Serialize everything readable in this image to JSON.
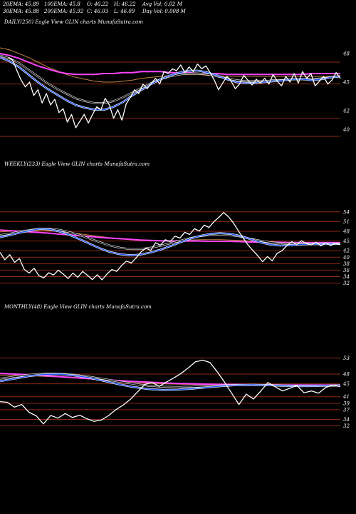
{
  "header": {
    "ema20": "20EMA: 45.89",
    "ema30": "30EMA: 45.88",
    "ema100": "100EMA: 45.8",
    "ema200": "200EMA: 45.92",
    "open": "O: 46.22",
    "close": "C: 46.03",
    "high": "H: 46.22",
    "low": "L: 46.09",
    "avg_vol": "Avg Vol: 0.02  M",
    "day_vol": "Day Vol: 0.008 M"
  },
  "colors": {
    "background": "#000000",
    "price": "#ffffff",
    "ema_short": "#2255ff",
    "ema_long": "#ff44ff",
    "ema_mid": "#c08040",
    "sr_line": "#8b2a12"
  },
  "chart_data": [
    {
      "type": "line",
      "title": "DAILY(250) Eagle  View  GLIN  charts MunafaSutra.com",
      "ylim": [
        39,
        49.5
      ],
      "yticks": [
        "48",
        "45",
        "42",
        "40"
      ],
      "sr_levels": [
        47.1,
        44.8,
        41.2,
        39.3
      ],
      "series": [
        {
          "role": "price",
          "values": [
            47.6,
            47.3,
            46.2,
            45.2,
            44.5,
            45.0,
            43.6,
            44.2,
            42.8,
            43.8,
            42.6,
            43.2,
            41.8,
            42.2,
            40.8,
            41.6,
            40.2,
            40.9,
            41.6,
            40.7,
            41.6,
            42.4,
            42.1,
            43.3,
            42.6,
            41.2,
            42.1,
            41.0,
            42.7,
            43.4,
            44.2,
            43.8,
            44.8,
            44.3,
            44.9,
            45.4,
            44.8,
            46.1,
            45.9,
            46.4,
            46.2,
            46.8,
            46.0,
            46.6,
            46.1,
            46.9,
            46.4,
            46.7,
            46.0,
            45.2,
            44.2,
            44.9,
            45.6,
            45.1,
            44.3,
            44.8,
            45.7,
            45.2,
            44.7,
            45.3,
            44.9,
            45.4,
            44.8,
            45.8,
            45.1,
            44.6,
            45.6,
            45.0,
            45.9,
            44.9,
            46.1,
            45.4,
            45.9,
            44.6,
            45.1,
            45.6,
            44.8,
            45.2,
            46.0,
            45.4
          ]
        },
        {
          "role": "ema20",
          "values": [
            47.6,
            47.2,
            46.6,
            45.8,
            45.0,
            44.3,
            43.7,
            43.1,
            42.6,
            42.3,
            42.1,
            42.1,
            42.4,
            42.9,
            43.6,
            44.2,
            44.8,
            45.3,
            45.7,
            46.0,
            46.2,
            46.2,
            46.0,
            45.7,
            45.3,
            45.0,
            44.9,
            44.9,
            45.0,
            45.1,
            45.2,
            45.3,
            45.3,
            45.2,
            45.3,
            45.5,
            45.6
          ]
        },
        {
          "role": "ema30",
          "values": [
            47.8,
            47.5,
            47.0,
            46.3,
            45.6,
            44.9,
            44.3,
            43.8,
            43.3,
            43.0,
            42.8,
            42.8,
            43.0,
            43.4,
            43.9,
            44.4,
            44.9,
            45.3,
            45.6,
            45.8,
            45.9,
            45.9,
            45.8,
            45.6,
            45.4,
            45.2,
            45.1,
            45.1,
            45.1,
            45.2,
            45.2,
            45.3,
            45.3,
            45.3,
            45.4,
            45.5,
            45.6
          ]
        },
        {
          "role": "ema100",
          "values": [
            48.6,
            48.4,
            48.0,
            47.6,
            47.1,
            46.6,
            46.2,
            45.8,
            45.5,
            45.3,
            45.1,
            45.0,
            45.0,
            45.1,
            45.2,
            45.4,
            45.5,
            45.6,
            45.7,
            45.8,
            45.8,
            45.8,
            45.7,
            45.7,
            45.6,
            45.6,
            45.6,
            45.6,
            45.6,
            45.6,
            45.6,
            45.6,
            45.6,
            45.6,
            45.6,
            45.6,
            45.7
          ]
        },
        {
          "role": "ema200",
          "values": [
            48.0,
            47.8,
            47.5,
            47.1,
            46.7,
            46.4,
            46.1,
            45.9,
            45.8,
            45.8,
            45.8,
            45.9,
            45.9,
            46.0,
            46.0,
            46.1,
            46.1,
            46.1,
            46.0,
            46.0,
            46.0,
            45.9,
            45.9,
            45.9,
            45.8,
            45.8,
            45.8,
            45.8,
            45.8,
            45.8,
            45.8,
            45.8,
            45.8,
            45.9,
            45.9,
            45.9,
            45.9
          ]
        }
      ]
    },
    {
      "type": "line",
      "title": "WEEKLY(233) Eagle  View  GLIN  charts MunafaSutra.com",
      "ylim": [
        30.8,
        55.5
      ],
      "yticks": [
        "54",
        "51",
        "48",
        "45",
        "42",
        "40",
        "38",
        "36",
        "34",
        "32"
      ],
      "sr_levels": [
        54,
        51,
        48,
        45,
        42,
        40,
        38,
        36,
        34,
        32
      ],
      "series": [
        {
          "role": "price",
          "values": [
            41.5,
            39.2,
            40.8,
            38.4,
            39.6,
            36.2,
            35.1,
            36.6,
            34.3,
            33.6,
            35.2,
            34.5,
            36.0,
            34.8,
            33.4,
            35.1,
            33.8,
            35.6,
            34.4,
            33.1,
            34.6,
            33.0,
            34.8,
            36.2,
            35.6,
            37.4,
            38.8,
            38.2,
            39.8,
            41.6,
            42.8,
            42.1,
            44.5,
            43.7,
            45.4,
            44.8,
            46.5,
            45.9,
            47.7,
            47.0,
            48.8,
            48.1,
            49.9,
            49.2,
            51.0,
            52.3,
            53.8,
            52.5,
            50.6,
            48.2,
            46.0,
            43.8,
            42.1,
            40.5,
            38.6,
            40.2,
            38.9,
            41.2,
            42.0,
            43.6,
            44.8,
            43.9,
            45.1,
            44.2,
            43.8,
            44.6,
            43.5,
            44.5,
            43.6,
            44.3,
            43.9
          ]
        },
        {
          "role": "ema20",
          "values": [
            46.2,
            46.8,
            47.6,
            48.2,
            48.8,
            48.6,
            47.9,
            46.8,
            45.5,
            44.1,
            42.7,
            41.6,
            40.9,
            40.6,
            40.8,
            41.4,
            42.3,
            43.4,
            44.6,
            45.7,
            46.6,
            47.2,
            47.4,
            47.2,
            46.6,
            45.6,
            44.6,
            43.9,
            43.6,
            43.7,
            43.9,
            44.0,
            44.0,
            44.1,
            44.1
          ]
        },
        {
          "role": "ema30",
          "values": [
            46.8,
            47.3,
            47.9,
            48.4,
            48.8,
            48.8,
            48.4,
            47.7,
            46.8,
            45.7,
            44.6,
            43.6,
            42.9,
            42.5,
            42.5,
            42.9,
            43.5,
            44.3,
            45.1,
            45.9,
            46.5,
            46.9,
            47.0,
            46.8,
            46.4,
            45.7,
            45.1,
            44.6,
            44.3,
            44.2,
            44.2,
            44.2,
            44.2,
            44.2,
            44.2
          ]
        },
        {
          "role": "ema100",
          "values": [
            47.8,
            48.0,
            48.2,
            48.3,
            48.3,
            48.2,
            47.9,
            47.6,
            47.2,
            46.8,
            46.4,
            46.0,
            45.7,
            45.4,
            45.2,
            45.1,
            45.1,
            45.1,
            45.2,
            45.3,
            45.4,
            45.4,
            45.4,
            45.3,
            45.2,
            45.0,
            44.9,
            44.8,
            44.7,
            44.6,
            44.6,
            44.5,
            44.5,
            44.5,
            44.5
          ]
        },
        {
          "role": "ema200",
          "values": [
            48.4,
            48.2,
            48.0,
            47.8,
            47.6,
            47.4,
            47.1,
            46.9,
            46.6,
            46.4,
            46.1,
            45.9,
            45.7,
            45.5,
            45.3,
            45.2,
            45.1,
            45.0,
            45.0,
            45.0,
            45.0,
            44.9,
            44.9,
            44.9,
            44.8,
            44.7,
            44.7,
            44.6,
            44.6,
            44.5,
            44.5,
            44.5,
            44.5,
            44.5,
            44.5
          ]
        }
      ]
    },
    {
      "type": "line",
      "title": "MONTHLY(48) Eagle  View  GLIN  charts MunafaSutra.com",
      "ylim": [
        30.8,
        55.5
      ],
      "yticks": [
        "53",
        "48",
        "45",
        "41",
        "39",
        "37",
        "34",
        "32"
      ],
      "sr_levels": [
        53,
        48,
        45,
        41,
        39,
        37,
        34,
        32
      ],
      "series": [
        {
          "role": "price",
          "values": [
            39.5,
            39.3,
            37.8,
            38.6,
            36.2,
            35.1,
            32.6,
            35.2,
            34.4,
            35.8,
            34.6,
            35.3,
            34.2,
            33.4,
            33.8,
            35.2,
            37.0,
            38.4,
            40.2,
            42.5,
            44.8,
            45.4,
            44.2,
            45.6,
            46.8,
            48.2,
            49.9,
            51.8,
            52.3,
            51.6,
            48.7,
            45.5,
            42.1,
            38.6,
            41.8,
            40.3,
            42.7,
            45.4,
            44.1,
            42.8,
            43.6,
            44.5,
            42.2,
            42.8,
            42.1,
            43.9,
            44.6,
            44.1
          ]
        },
        {
          "role": "ema20",
          "values": [
            45.8,
            46.6,
            47.4,
            47.9,
            48.0,
            47.6,
            46.9,
            45.9,
            44.9,
            44.0,
            43.4,
            43.1,
            43.2,
            43.5,
            43.9,
            44.3,
            44.6,
            44.7,
            44.6,
            44.4,
            44.3,
            44.3,
            44.4,
            44.5
          ]
        },
        {
          "role": "ema30",
          "values": [
            46.6,
            47.2,
            47.8,
            48.1,
            48.1,
            47.8,
            47.2,
            46.5,
            45.7,
            45.0,
            44.4,
            44.1,
            44.0,
            44.1,
            44.3,
            44.5,
            44.6,
            44.6,
            44.6,
            44.5,
            44.4,
            44.4,
            44.4,
            44.5
          ]
        },
        {
          "role": "ema100",
          "values": [
            47.6,
            47.6,
            47.5,
            47.3,
            47.1,
            46.8,
            46.5,
            46.1,
            45.8,
            45.5,
            45.2,
            45.0,
            44.9,
            44.8,
            44.7,
            44.7,
            44.6,
            44.6,
            44.6,
            44.5,
            44.5,
            44.5,
            44.5,
            44.5
          ]
        },
        {
          "role": "ema200",
          "values": [
            48.2,
            48.0,
            47.8,
            47.5,
            47.2,
            46.9,
            46.6,
            46.3,
            46.0,
            45.7,
            45.5,
            45.3,
            45.1,
            45.0,
            44.9,
            44.8,
            44.8,
            44.7,
            44.7,
            44.6,
            44.6,
            44.6,
            44.6,
            44.6
          ]
        }
      ]
    }
  ]
}
